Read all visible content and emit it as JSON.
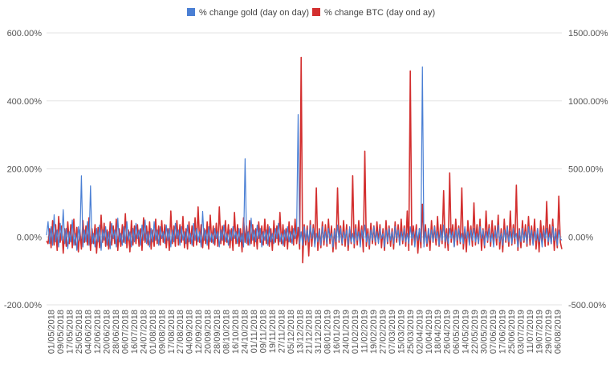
{
  "chart_data": {
    "type": "line",
    "title": "",
    "xlabel": "",
    "ylabel": "",
    "legend_position": "top",
    "grid": true,
    "y_left": {
      "min": -200,
      "max": 600,
      "ticks": [
        -200,
        0,
        200,
        400,
        600
      ],
      "tick_labels": [
        "-200.00%",
        "0.00%",
        "200.00%",
        "400.00%",
        "600.00%"
      ]
    },
    "y_right": {
      "min": -500,
      "max": 1500,
      "ticks": [
        -500,
        0,
        500,
        1000,
        1500
      ],
      "tick_labels": [
        "-500.00%",
        "0.00%",
        "500.00%",
        "1000.00%",
        "1500.00%"
      ]
    },
    "x_tick_labels": [
      "01/05/2018",
      "09/05/2018",
      "17/05/2018",
      "25/05/2018",
      "04/06/2018",
      "12/06/2018",
      "20/06/2018",
      "28/06/2018",
      "06/07/2018",
      "16/07/2018",
      "24/07/2018",
      "01/08/2018",
      "09/08/2018",
      "17/08/2018",
      "27/08/2018",
      "04/09/2018",
      "12/09/2018",
      "20/09/2018",
      "28/09/2018",
      "08/10/2018",
      "16/10/2018",
      "24/10/2018",
      "01/11/2018",
      "09/11/2018",
      "19/11/2018",
      "27/11/2018",
      "05/12/2018",
      "13/12/2018",
      "21/12/2018",
      "31/12/2018",
      "08/01/2019",
      "16/01/2019",
      "24/01/2019",
      "01/02/2019",
      "11/02/2019",
      "19/02/2019",
      "27/02/2019",
      "07/03/2019",
      "15/03/2019",
      "25/03/2019",
      "02/04/2019",
      "10/04/2019",
      "18/04/2019",
      "26/04/2019",
      "06/05/2019",
      "14/05/2019",
      "22/05/2019",
      "30/05/2019",
      "07/06/2019",
      "17/06/2019",
      "25/06/2019",
      "03/07/2019",
      "11/07/2019",
      "19/07/2019",
      "29/07/2019",
      "06/08/2019"
    ],
    "series": [
      {
        "name": "% change gold (day on day)",
        "color": "#4a7fd4",
        "axis": "left",
        "values": [
          5,
          45,
          -20,
          30,
          -25,
          65,
          -15,
          20,
          -30,
          40,
          -10,
          80,
          -20,
          25,
          -35,
          15,
          -15,
          50,
          -25,
          10,
          -40,
          30,
          -10,
          180,
          -30,
          20,
          -15,
          45,
          -25,
          150,
          -20,
          10,
          -30,
          25,
          -15,
          35,
          -40,
          20,
          -10,
          30,
          -25,
          15,
          -35,
          40,
          -5,
          20,
          -30,
          55,
          -15,
          10,
          -25,
          30,
          -20,
          45,
          -10,
          15,
          -30,
          25,
          -15,
          40,
          -5,
          20,
          -25,
          35,
          -10,
          50,
          -20,
          15,
          -30,
          25,
          -15,
          45,
          -10,
          20,
          -25,
          30,
          -5,
          15,
          -20,
          35,
          -10,
          25,
          -30,
          20,
          -15,
          40,
          -5,
          20,
          -25,
          30,
          -10,
          15,
          -20,
          35,
          -15,
          10,
          -25,
          40,
          -10,
          25,
          -15,
          15,
          -30,
          75,
          -10,
          20,
          -25,
          30,
          -15,
          10,
          -20,
          25,
          -5,
          15,
          -30,
          20,
          -10,
          35,
          -15,
          10,
          -25,
          20,
          -10,
          30,
          -5,
          15,
          -20,
          25,
          -15,
          10,
          -30,
          230,
          -20,
          15,
          -25,
          55,
          -10,
          20,
          -15,
          35,
          -5,
          25,
          -30,
          15,
          -10,
          20,
          -25,
          30,
          -15,
          10,
          -20,
          25,
          -5,
          40,
          -15,
          10,
          -25,
          20,
          -10,
          30,
          -15,
          15,
          -20,
          25,
          -5,
          10,
          360,
          -20,
          15,
          -25,
          30,
          -10,
          20,
          -15,
          35,
          -5,
          25,
          -30,
          10,
          -15,
          20,
          -25,
          30,
          -10,
          15,
          -20,
          25,
          -5,
          10,
          -30,
          20,
          -15,
          35,
          -10,
          25,
          -20,
          15,
          -5,
          20,
          -25,
          30,
          -15,
          10,
          -20,
          25,
          -10,
          15,
          -30,
          20,
          -5,
          35,
          -15,
          10,
          -25,
          20,
          -10,
          30,
          -15,
          15,
          -20,
          25,
          -5,
          10,
          -30,
          20,
          -15,
          25,
          -10,
          15,
          -20,
          30,
          -5,
          20,
          -25,
          15,
          -10,
          25,
          -15,
          10,
          -20,
          30,
          -5,
          15,
          -30,
          20,
          -10,
          25,
          -15,
          500,
          -30,
          15,
          -20,
          25,
          -10,
          20,
          -15,
          30,
          -5,
          15,
          -25,
          20,
          -10,
          35,
          -15,
          10,
          -20,
          25,
          -5,
          15,
          -30,
          20,
          -10,
          25,
          -15,
          10,
          -20,
          30,
          -5,
          15,
          -25,
          20,
          -10,
          25,
          -15,
          10,
          -20,
          30,
          -5,
          20,
          -25,
          15,
          -10,
          25,
          -15,
          10,
          -30,
          20,
          -5,
          35,
          -15,
          10,
          -25,
          20,
          -10,
          30,
          -15,
          15,
          -20,
          25,
          -5,
          10,
          -30,
          20,
          -15,
          25,
          -10,
          15,
          -20,
          30,
          -5,
          20,
          -25,
          15,
          -10,
          25,
          -15,
          10,
          -30,
          20,
          -5,
          25,
          -15,
          10,
          -20,
          30,
          -10,
          15,
          -25,
          20,
          -5,
          -10
        ]
      },
      {
        "name": "% change BTC (day ond ay)",
        "color": "#d32f2f",
        "axis": "right",
        "values": [
          -30,
          -50,
          60,
          -80,
          120,
          -60,
          90,
          -100,
          150,
          -40,
          80,
          -120,
          60,
          -70,
          110,
          -50,
          90,
          -80,
          130,
          -60,
          70,
          -110,
          50,
          -90,
          120,
          -40,
          80,
          -60,
          140,
          -100,
          60,
          -50,
          90,
          -120,
          70,
          -80,
          160,
          -40,
          100,
          -70,
          50,
          -90,
          110,
          -60,
          80,
          -50,
          130,
          -100,
          60,
          -70,
          90,
          -40,
          170,
          -80,
          50,
          -110,
          120,
          -60,
          80,
          -50,
          90,
          -70,
          60,
          -100,
          140,
          -40,
          80,
          -60,
          110,
          -90,
          50,
          -70,
          130,
          -50,
          80,
          -60,
          120,
          -40,
          90,
          -80,
          60,
          -100,
          190,
          -50,
          80,
          -70,
          120,
          -60,
          90,
          -40,
          150,
          -80,
          60,
          -90,
          110,
          -50,
          80,
          -70,
          140,
          -60,
          220,
          -40,
          90,
          -80,
          60,
          -50,
          110,
          -90,
          160,
          -40,
          80,
          -60,
          100,
          -70,
          220,
          -50,
          80,
          -60,
          120,
          -40,
          90,
          -80,
          60,
          -100,
          180,
          -50,
          90,
          -70,
          60,
          -110,
          140,
          -40,
          80,
          -60,
          120,
          -50,
          90,
          -70,
          60,
          -90,
          110,
          -40,
          80,
          -60,
          130,
          -50,
          90,
          -70,
          60,
          -100,
          120,
          -40,
          80,
          -60,
          180,
          -50,
          90,
          -70,
          60,
          -90,
          110,
          -40,
          80,
          -60,
          130,
          -50,
          70,
          -90,
          1320,
          -190,
          90,
          -60,
          80,
          -140,
          120,
          -70,
          90,
          -50,
          360,
          -100,
          60,
          -80,
          110,
          -60,
          90,
          -70,
          130,
          -50,
          80,
          -110,
          60,
          -90,
          360,
          -40,
          80,
          -60,
          120,
          -70,
          90,
          -100,
          60,
          -50,
          450,
          -80,
          90,
          -60,
          120,
          -40,
          80,
          -110,
          630,
          -70,
          60,
          -90,
          100,
          -50,
          80,
          -60,
          110,
          -40,
          90,
          -80,
          60,
          -100,
          120,
          -50,
          80,
          -70,
          60,
          -90,
          110,
          -40,
          90,
          -60,
          130,
          -50,
          80,
          -70,
          190,
          -100,
          1220,
          -60,
          80,
          -40,
          90,
          -120,
          60,
          -80,
          240,
          -50,
          90,
          -70,
          60,
          -100,
          120,
          -40,
          80,
          -60,
          150,
          -70,
          90,
          -50,
          340,
          -80,
          60,
          -100,
          470,
          -40,
          90,
          -70,
          130,
          -60,
          80,
          -50,
          360,
          -90,
          60,
          -110,
          120,
          -40,
          80,
          -70,
          250,
          -60,
          90,
          -50,
          130,
          -100,
          60,
          -80,
          190,
          -40,
          90,
          -70,
          120,
          -50,
          80,
          -60,
          160,
          -90,
          60,
          -110,
          130,
          -40,
          80,
          -70,
          190,
          -60,
          90,
          -50,
          380,
          -100,
          60,
          -80,
          120,
          -40,
          90,
          -70,
          150,
          -60,
          80,
          -50,
          130,
          -90,
          60,
          -110,
          120,
          -40,
          80,
          -70,
          260,
          -60,
          90,
          -50,
          130,
          -100,
          60,
          -80,
          300,
          -40,
          -90
        ]
      }
    ]
  }
}
